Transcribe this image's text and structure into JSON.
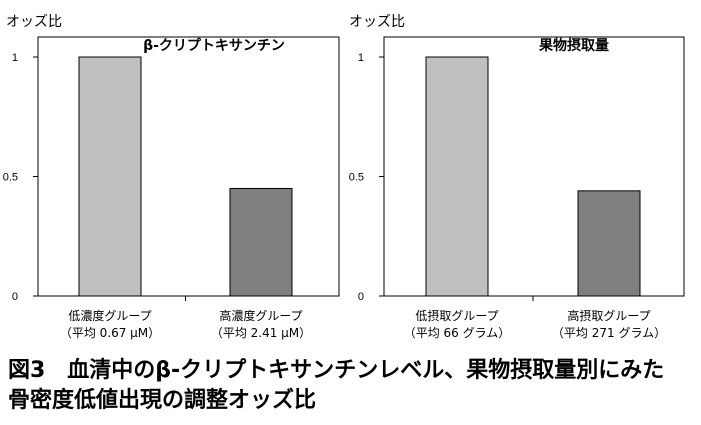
{
  "chart_data": [
    {
      "type": "bar",
      "title": "β-クリプトキサンチン",
      "ylabel": "オッズ比",
      "xlabel": "",
      "ylim": [
        0,
        1
      ],
      "yticks": [
        "0",
        "0.5",
        "1"
      ],
      "ytick_values": [
        0,
        0.5,
        1
      ],
      "categories": [
        [
          "低濃度グループ",
          "（平均 0.67 μM）"
        ],
        [
          "高濃度グループ",
          "（平均 2.41 μM）"
        ]
      ],
      "values": [
        1,
        0.45
      ],
      "colors": [
        "#c0c0c0",
        "#7f7f7f"
      ],
      "grid": false
    },
    {
      "type": "bar",
      "title": "果物摂取量",
      "ylabel": "オッズ比",
      "xlabel": "",
      "ylim": [
        0,
        1
      ],
      "yticks": [
        "0",
        "0.5",
        "1"
      ],
      "ytick_values": [
        0,
        0.5,
        1
      ],
      "categories": [
        [
          "低摂取グループ",
          "（平均 66 グラム）"
        ],
        [
          "高摂取グループ",
          "（平均 271 グラム）"
        ]
      ],
      "values": [
        1,
        0.44
      ],
      "colors": [
        "#c0c0c0",
        "#7f7f7f"
      ],
      "grid": false
    }
  ],
  "caption": {
    "line1": "図3　血清中のβ-クリプトキサンチンレベル、果物摂取量別にみた",
    "line2": "骨密度低値出現の調整オッズ比"
  }
}
